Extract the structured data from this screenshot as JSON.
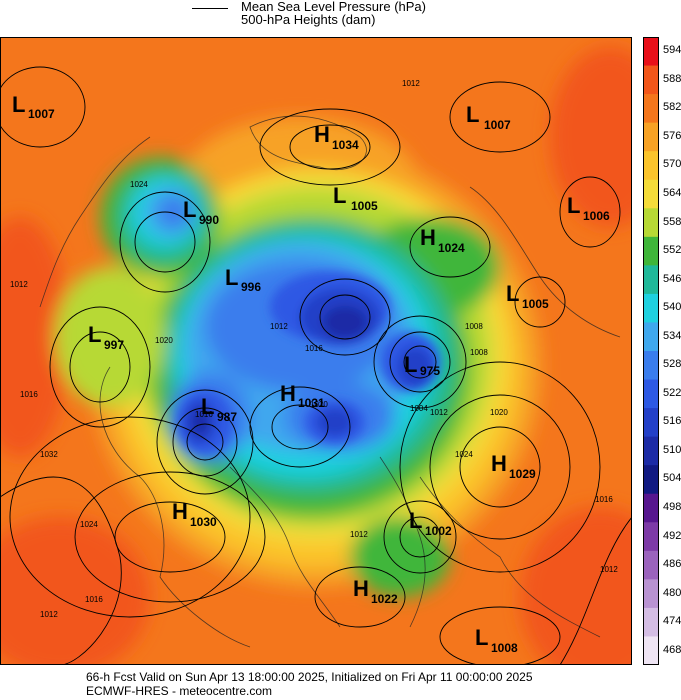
{
  "legend": {
    "line_label_1": "Mean Sea Level Pressure (hPa)",
    "line_label_2": "500-hPa Heights (dam)"
  },
  "colorbar": {
    "levels": [
      "594",
      "588",
      "582",
      "576",
      "570",
      "564",
      "558",
      "552",
      "546",
      "540",
      "534",
      "528",
      "522",
      "516",
      "510",
      "504",
      "498",
      "492",
      "486",
      "480",
      "474",
      "468"
    ],
    "colors": [
      "#e8101a",
      "#f2561a",
      "#f4761c",
      "#f7a225",
      "#fbc42c",
      "#f4dc3a",
      "#b7d935",
      "#3fb63a",
      "#1fb99a",
      "#1ed1e0",
      "#3fa8ee",
      "#3a7ded",
      "#2d59e4",
      "#2340c8",
      "#1c2ba6",
      "#111a82",
      "#57168f",
      "#7d3aa7",
      "#9b63bd",
      "#b993d2",
      "#d4bde4",
      "#efe5f4"
    ]
  },
  "systems": [
    {
      "type": "L",
      "value": "1007"
    },
    {
      "type": "L",
      "value": "1007"
    },
    {
      "type": "H",
      "value": "1034"
    },
    {
      "type": "L",
      "value": "990"
    },
    {
      "type": "L",
      "value": "1005"
    },
    {
      "type": "L",
      "value": "1006"
    },
    {
      "type": "H",
      "value": "1024"
    },
    {
      "type": "L",
      "value": "996"
    },
    {
      "type": "L",
      "value": "1005"
    },
    {
      "type": "L",
      "value": "997"
    },
    {
      "type": "L",
      "value": "975"
    },
    {
      "type": "H",
      "value": "1031"
    },
    {
      "type": "L",
      "value": "987"
    },
    {
      "type": "H",
      "value": "1029"
    },
    {
      "type": "H",
      "value": "1030"
    },
    {
      "type": "L",
      "value": "1002"
    },
    {
      "type": "H",
      "value": "1022"
    },
    {
      "type": "L",
      "value": "1008"
    }
  ],
  "isobar_labels": [
    "1012",
    "1012",
    "1020",
    "1016",
    "1008",
    "1004",
    "1032",
    "1024",
    "1016",
    "1012",
    "1016",
    "1024",
    "1020",
    "1016",
    "1012",
    "1024",
    "1012",
    "1012",
    "1020",
    "1016",
    "1012",
    "1008"
  ],
  "footer": {
    "line1": "66-h Fcst Valid on Sun Apr 13 18:00:00 2025, Initialized on Fri Apr 11 00:00:00 2025",
    "line2": "ECMWF-HRES  - meteocentre.com"
  }
}
